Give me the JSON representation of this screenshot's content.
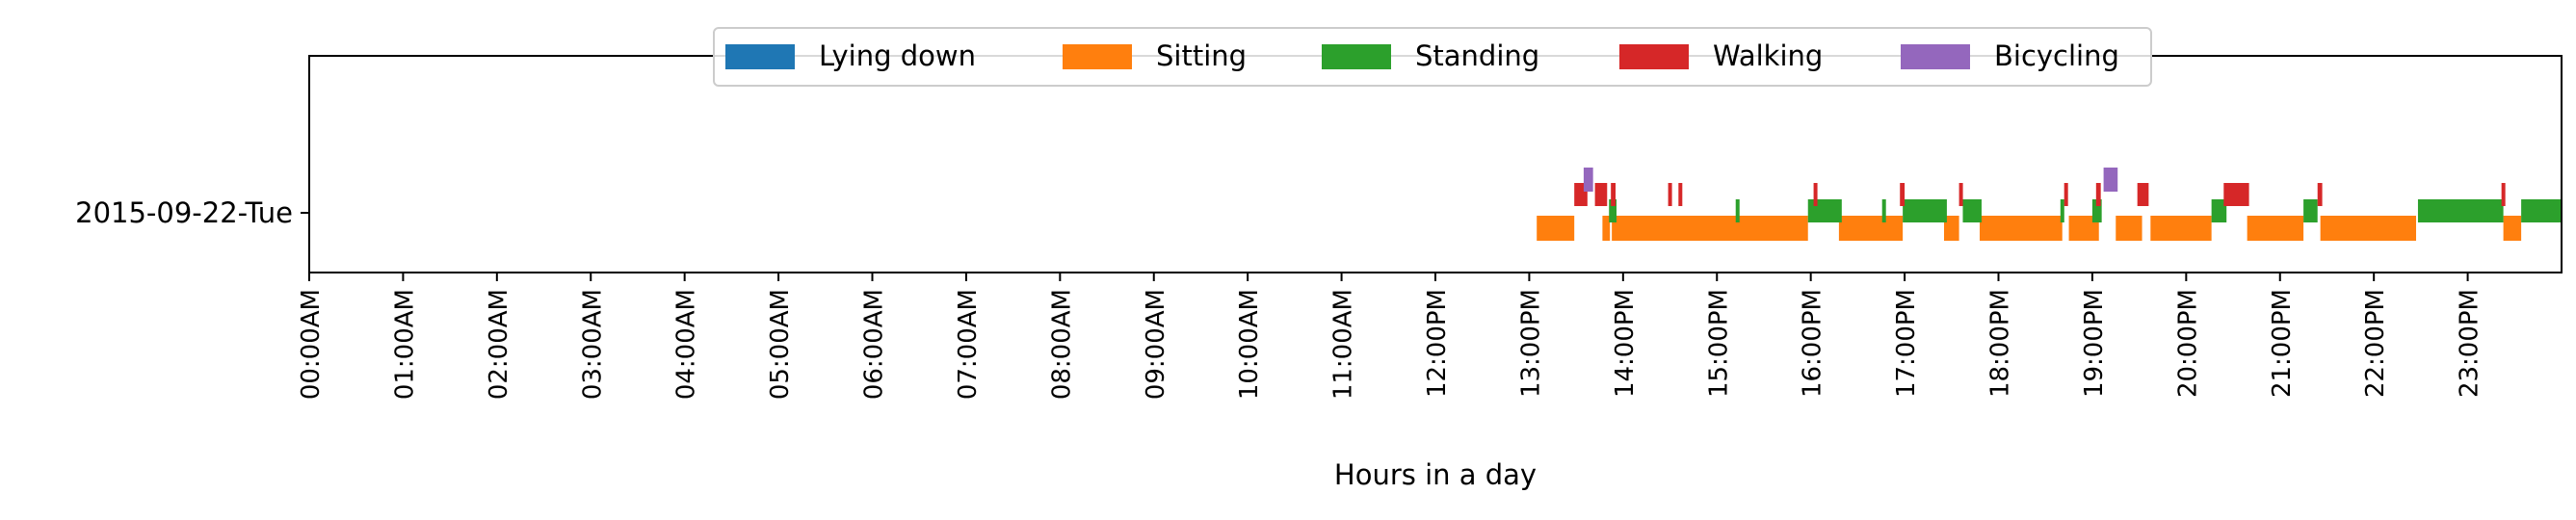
{
  "chart_data": {
    "type": "timeline",
    "xlabel": "Hours in a day",
    "ylabel": "",
    "xlim": [
      0,
      24
    ],
    "x_ticks": [
      {
        "value": 0,
        "label": "00:00AM"
      },
      {
        "value": 1,
        "label": "01:00AM"
      },
      {
        "value": 2,
        "label": "02:00AM"
      },
      {
        "value": 3,
        "label": "03:00AM"
      },
      {
        "value": 4,
        "label": "04:00AM"
      },
      {
        "value": 5,
        "label": "05:00AM"
      },
      {
        "value": 6,
        "label": "06:00AM"
      },
      {
        "value": 7,
        "label": "07:00AM"
      },
      {
        "value": 8,
        "label": "08:00AM"
      },
      {
        "value": 9,
        "label": "09:00AM"
      },
      {
        "value": 10,
        "label": "10:00AM"
      },
      {
        "value": 11,
        "label": "11:00AM"
      },
      {
        "value": 12,
        "label": "12:00PM"
      },
      {
        "value": 13,
        "label": "13:00PM"
      },
      {
        "value": 14,
        "label": "14:00PM"
      },
      {
        "value": 15,
        "label": "15:00PM"
      },
      {
        "value": 16,
        "label": "16:00PM"
      },
      {
        "value": 17,
        "label": "17:00PM"
      },
      {
        "value": 18,
        "label": "18:00PM"
      },
      {
        "value": 19,
        "label": "19:00PM"
      },
      {
        "value": 20,
        "label": "20:00PM"
      },
      {
        "value": 21,
        "label": "21:00PM"
      },
      {
        "value": 22,
        "label": "22:00PM"
      },
      {
        "value": 23,
        "label": "23:00PM"
      }
    ],
    "rows": [
      "2015-09-22-Tue"
    ],
    "legend_position": "top-center",
    "series": [
      {
        "name": "Lying down",
        "color": "#1f77b4",
        "intervals": []
      },
      {
        "name": "Sitting",
        "color": "#ff7f0e",
        "intervals": [
          [
            13.08,
            13.48
          ],
          [
            13.78,
            13.86
          ],
          [
            13.88,
            15.97
          ],
          [
            16.3,
            16.98
          ],
          [
            17.42,
            17.58
          ],
          [
            17.8,
            18.68
          ],
          [
            18.75,
            19.07
          ],
          [
            19.25,
            19.53
          ],
          [
            19.62,
            20.27
          ],
          [
            20.65,
            21.25
          ],
          [
            21.43,
            22.45
          ],
          [
            23.38,
            23.57
          ]
        ]
      },
      {
        "name": "Standing",
        "color": "#2ca02c",
        "intervals": [
          [
            13.85,
            13.93
          ],
          [
            15.2,
            15.23
          ],
          [
            15.97,
            16.33
          ],
          [
            16.76,
            16.79
          ],
          [
            16.98,
            17.45
          ],
          [
            17.62,
            17.82
          ],
          [
            18.66,
            18.7
          ],
          [
            19.0,
            19.1
          ],
          [
            20.27,
            20.43
          ],
          [
            21.25,
            21.4
          ],
          [
            22.47,
            23.38
          ],
          [
            23.57,
            24.0
          ]
        ]
      },
      {
        "name": "Walking",
        "color": "#d62728",
        "intervals": [
          [
            13.48,
            13.62
          ],
          [
            13.7,
            13.83
          ],
          [
            13.87,
            13.92
          ],
          [
            14.48,
            14.52
          ],
          [
            14.59,
            14.62
          ],
          [
            16.03,
            16.07
          ],
          [
            16.95,
            17.0
          ],
          [
            17.58,
            17.62
          ],
          [
            18.7,
            18.74
          ],
          [
            19.04,
            19.09
          ],
          [
            19.48,
            19.6
          ],
          [
            20.4,
            20.67
          ],
          [
            21.4,
            21.45
          ],
          [
            23.36,
            23.39
          ]
        ]
      },
      {
        "name": "Bicycling",
        "color": "#9467bd",
        "intervals": [
          [
            13.58,
            13.68
          ],
          [
            19.12,
            19.27
          ]
        ]
      }
    ]
  }
}
